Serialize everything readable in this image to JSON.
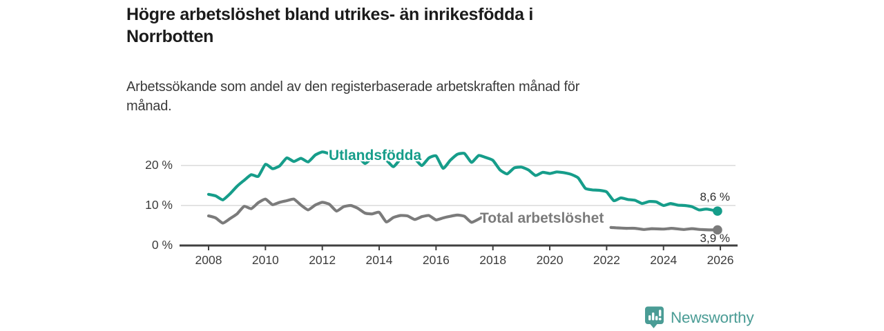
{
  "header": {
    "title_lines": [
      "Högre arbetslöshet bland utrikes- än inrikesfödda i",
      "Norrbotten"
    ],
    "subtitle_lines": [
      "Arbetssökande som andel av den registerbaserade arbetskraften månad för",
      "månad."
    ]
  },
  "chart_data": {
    "type": "line",
    "title": "Högre arbetslöshet bland utrikes- än inrikesfödda i Norrbotten",
    "subtitle": "Arbetssökande som andel av den registerbaserade arbetskraften månad för månad.",
    "unit": "%",
    "grid": "horizontal-only",
    "legend_position": "inline-labels",
    "x_axis": {
      "min": 2007.0,
      "max": 2026.5,
      "ticks": [
        2008,
        2010,
        2012,
        2014,
        2016,
        2018,
        2020,
        2022,
        2024,
        2026
      ]
    },
    "y_axis": {
      "min": 0,
      "max": 24.5,
      "ticks": [
        0,
        10,
        20
      ],
      "tick_labels": [
        "0 %",
        "10 %",
        "20 %"
      ]
    },
    "colors": {
      "axis": "#3f3f3f",
      "grid": "#dadada",
      "text": "#3c3c3c"
    },
    "series": [
      {
        "name": "Utlandsfödda",
        "color": "#169d8a",
        "end_label": "8,6 %",
        "end_value": 8.6,
        "segments": [
          [
            [
              2008.0,
              12.8
            ],
            [
              2008.25,
              12.4
            ],
            [
              2008.5,
              11.4
            ],
            [
              2008.75,
              12.9
            ],
            [
              2009.0,
              14.8
            ],
            [
              2009.25,
              16.3
            ],
            [
              2009.5,
              17.7
            ],
            [
              2009.75,
              17.3
            ],
            [
              2010.0,
              20.3
            ],
            [
              2010.25,
              19.2
            ],
            [
              2010.5,
              19.9
            ],
            [
              2010.75,
              21.9
            ],
            [
              2011.0,
              21.0
            ],
            [
              2011.25,
              21.8
            ],
            [
              2011.5,
              20.9
            ],
            [
              2011.75,
              22.6
            ],
            [
              2012.0,
              23.4
            ],
            [
              2012.25,
              22.9
            ],
            [
              2012.5,
              21.6
            ],
            [
              2012.75,
              22.7
            ],
            [
              2013.0,
              23.0
            ],
            [
              2013.25,
              22.3
            ],
            [
              2013.5,
              20.5
            ],
            [
              2013.75,
              21.9
            ],
            [
              2014.0,
              22.4
            ],
            [
              2014.25,
              21.4
            ],
            [
              2014.5,
              19.7
            ],
            [
              2014.75,
              21.6
            ],
            [
              2015.0,
              22.3
            ],
            [
              2015.25,
              21.7
            ],
            [
              2015.5,
              20.0
            ],
            [
              2015.75,
              21.9
            ],
            [
              2016.0,
              22.4
            ],
            [
              2016.25,
              19.3
            ],
            [
              2016.5,
              21.3
            ],
            [
              2016.75,
              22.8
            ],
            [
              2017.0,
              23.0
            ],
            [
              2017.25,
              20.8
            ],
            [
              2017.5,
              22.5
            ],
            [
              2017.75,
              22.0
            ],
            [
              2018.0,
              21.3
            ],
            [
              2018.25,
              18.9
            ],
            [
              2018.5,
              17.9
            ],
            [
              2018.75,
              19.4
            ],
            [
              2019.0,
              19.6
            ],
            [
              2019.25,
              18.9
            ],
            [
              2019.5,
              17.5
            ],
            [
              2019.75,
              18.3
            ],
            [
              2020.0,
              18.0
            ],
            [
              2020.25,
              18.4
            ],
            [
              2020.5,
              18.2
            ],
            [
              2020.75,
              17.8
            ],
            [
              2021.0,
              16.9
            ],
            [
              2021.25,
              14.3
            ],
            [
              2021.5,
              13.9
            ],
            [
              2021.75,
              13.8
            ],
            [
              2022.0,
              13.4
            ],
            [
              2022.25,
              11.2
            ],
            [
              2022.5,
              11.9
            ],
            [
              2022.75,
              11.5
            ],
            [
              2023.0,
              11.3
            ],
            [
              2023.25,
              10.5
            ],
            [
              2023.5,
              11.0
            ],
            [
              2023.75,
              10.9
            ],
            [
              2024.0,
              10.0
            ],
            [
              2024.25,
              10.5
            ],
            [
              2024.5,
              10.1
            ],
            [
              2024.75,
              10.0
            ],
            [
              2025.0,
              9.7
            ],
            [
              2025.25,
              8.9
            ],
            [
              2025.5,
              9.1
            ],
            [
              2025.75,
              8.8
            ],
            [
              2025.9,
              8.6
            ]
          ]
        ]
      },
      {
        "name": "Total arbetslöshet",
        "color": "#7b7b7b",
        "end_label": "3,9 %",
        "end_value": 3.9,
        "segments": [
          [
            [
              2008.0,
              7.4
            ],
            [
              2008.25,
              6.9
            ],
            [
              2008.5,
              5.6
            ],
            [
              2008.75,
              6.7
            ],
            [
              2009.0,
              7.9
            ],
            [
              2009.25,
              9.8
            ],
            [
              2009.5,
              9.2
            ],
            [
              2009.75,
              10.7
            ],
            [
              2010.0,
              11.6
            ],
            [
              2010.25,
              10.2
            ],
            [
              2010.5,
              10.8
            ],
            [
              2010.75,
              11.2
            ],
            [
              2011.0,
              11.6
            ],
            [
              2011.25,
              10.1
            ],
            [
              2011.5,
              8.9
            ],
            [
              2011.75,
              10.1
            ],
            [
              2012.0,
              10.8
            ],
            [
              2012.25,
              10.3
            ],
            [
              2012.5,
              8.6
            ],
            [
              2012.75,
              9.7
            ],
            [
              2013.0,
              10.0
            ],
            [
              2013.25,
              9.3
            ],
            [
              2013.5,
              8.1
            ],
            [
              2013.75,
              7.9
            ],
            [
              2014.0,
              8.3
            ],
            [
              2014.25,
              5.9
            ],
            [
              2014.5,
              7.0
            ],
            [
              2014.75,
              7.5
            ],
            [
              2015.0,
              7.4
            ],
            [
              2015.25,
              6.5
            ],
            [
              2015.5,
              7.2
            ],
            [
              2015.75,
              7.5
            ],
            [
              2016.0,
              6.4
            ],
            [
              2016.25,
              6.9
            ],
            [
              2016.5,
              7.3
            ],
            [
              2016.75,
              7.6
            ],
            [
              2017.0,
              7.3
            ],
            [
              2017.25,
              5.8
            ],
            [
              2017.6,
              7.0
            ]
          ],
          [
            [
              2022.15,
              4.5
            ],
            [
              2022.4,
              4.4
            ],
            [
              2022.7,
              4.3
            ],
            [
              2023.0,
              4.3
            ],
            [
              2023.3,
              4.0
            ],
            [
              2023.6,
              4.2
            ],
            [
              2024.0,
              4.1
            ],
            [
              2024.3,
              4.3
            ],
            [
              2024.7,
              4.0
            ],
            [
              2025.0,
              4.2
            ],
            [
              2025.3,
              4.0
            ],
            [
              2025.6,
              3.9
            ],
            [
              2025.9,
              3.9
            ]
          ]
        ]
      }
    ]
  },
  "branding": {
    "logo_text": "Newsworthy",
    "logo_color": "#4a9c95",
    "logo_icon": "newsworthy-bubble-barchart-icon"
  }
}
